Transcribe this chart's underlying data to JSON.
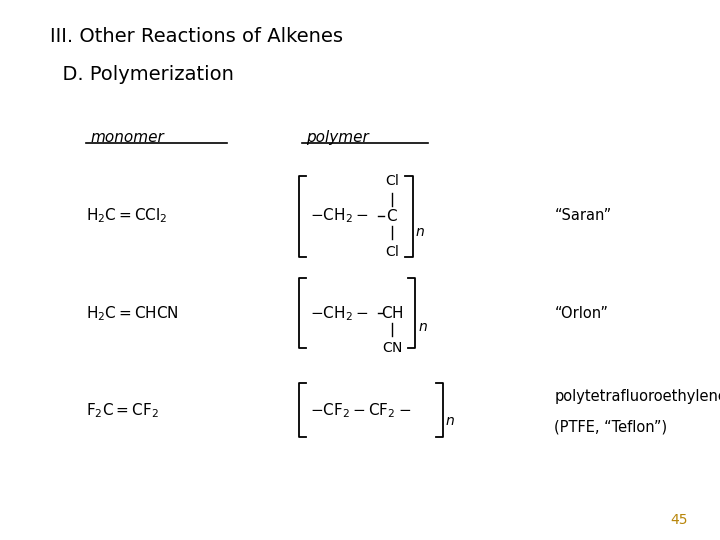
{
  "bg_color": "#ffffff",
  "text_color": "#000000",
  "page_number": "45",
  "page_number_color": "#b8860b",
  "title_line1": "III. Other Reactions of Alkenes",
  "title_line2": "  D. Polymerization",
  "monomer_label": "monomer",
  "polymer_label": "polymer"
}
